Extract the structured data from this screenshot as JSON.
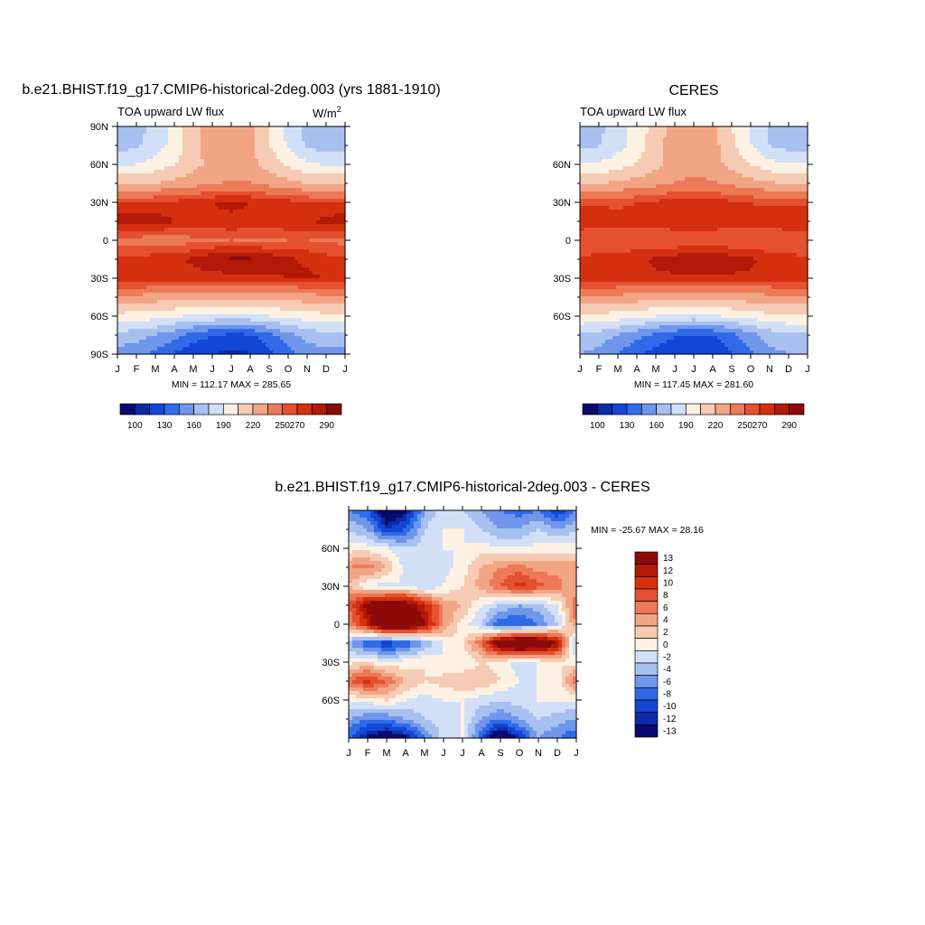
{
  "palettes": {
    "absolute": [
      "#0a0a70",
      "#0d2ba8",
      "#1446d6",
      "#2f6be8",
      "#6f96ea",
      "#a8c0ef",
      "#d2e0f7",
      "#fdf1e3",
      "#f6cbb3",
      "#f2a585",
      "#ec7a57",
      "#e45030",
      "#d4300f",
      "#b21906",
      "#8c0a0a"
    ],
    "difference": [
      "#0a0a70",
      "#0d2ba8",
      "#1446d6",
      "#2f6be8",
      "#6f96ea",
      "#a8c0ef",
      "#d2e0f7",
      "#fdf1e3",
      "#f6cbb3",
      "#f2a585",
      "#ec7a57",
      "#e45030",
      "#d4300f",
      "#b21906",
      "#8c0a0a"
    ]
  },
  "chart_data": [
    {
      "id": "model",
      "type": "heatmap",
      "title": "b.e21.BHIST.f19_g17.CMIP6-historical-2deg.003 (yrs 1881-1910)",
      "left_label": "TOA upward LW flux",
      "units": "W/m",
      "units_sup": "2",
      "stats": "MIN = 112.17 MAX = 285.65",
      "x_ticks": [
        "J",
        "F",
        "M",
        "A",
        "M",
        "J",
        "J",
        "A",
        "S",
        "O",
        "N",
        "D",
        "J"
      ],
      "y_ticks": [
        "90N",
        "60N",
        "30N",
        "0",
        "30S",
        "60S",
        "90S"
      ],
      "colorbar_labels": [
        "100",
        "130",
        "160",
        "190",
        "220",
        "250",
        "270",
        "290"
      ],
      "levels": [
        80,
        100,
        115,
        130,
        145,
        160,
        175,
        190,
        205,
        220,
        235,
        250,
        260,
        270,
        280,
        290
      ],
      "grid": {
        "lats": [
          90,
          75,
          60,
          45,
          30,
          15,
          0,
          -15,
          -30,
          -45,
          -60,
          -75,
          -90
        ],
        "months": [
          "J",
          "F",
          "M",
          "A",
          "M",
          "J",
          "J",
          "A",
          "S",
          "O",
          "N",
          "D",
          "J"
        ],
        "values": [
          [
            165,
            170,
            180,
            195,
            215,
            230,
            235,
            225,
            205,
            185,
            170,
            165,
            165
          ],
          [
            168,
            172,
            182,
            196,
            214,
            228,
            232,
            224,
            206,
            188,
            173,
            168,
            168
          ],
          [
            188,
            190,
            196,
            205,
            215,
            225,
            228,
            224,
            214,
            203,
            193,
            188,
            188
          ],
          [
            218,
            218,
            220,
            224,
            229,
            234,
            237,
            236,
            230,
            224,
            220,
            218,
            218
          ],
          [
            262,
            262,
            262,
            263,
            266,
            270,
            272,
            270,
            266,
            264,
            262,
            262,
            262
          ],
          [
            276,
            278,
            276,
            270,
            268,
            268,
            268,
            268,
            266,
            268,
            270,
            272,
            276
          ],
          [
            246,
            244,
            242,
            244,
            246,
            248,
            250,
            248,
            248,
            250,
            250,
            248,
            246
          ],
          [
            262,
            264,
            266,
            268,
            272,
            278,
            282,
            282,
            278,
            272,
            268,
            264,
            262
          ],
          [
            270,
            270,
            268,
            266,
            266,
            266,
            266,
            266,
            268,
            270,
            272,
            270,
            270
          ],
          [
            230,
            230,
            228,
            226,
            224,
            224,
            222,
            222,
            224,
            226,
            228,
            230,
            230
          ],
          [
            200,
            198,
            196,
            192,
            188,
            186,
            185,
            186,
            190,
            194,
            198,
            200,
            200
          ],
          [
            170,
            166,
            160,
            150,
            138,
            130,
            126,
            128,
            140,
            155,
            165,
            170,
            170
          ],
          [
            155,
            150,
            140,
            128,
            118,
            114,
            112,
            114,
            124,
            140,
            152,
            155,
            155
          ]
        ]
      }
    },
    {
      "id": "obs",
      "type": "heatmap",
      "title": "CERES",
      "left_label": "TOA upward LW flux",
      "stats": "MIN = 117.45 MAX = 281.60",
      "x_ticks": [
        "J",
        "F",
        "M",
        "A",
        "M",
        "J",
        "J",
        "A",
        "S",
        "O",
        "N",
        "D",
        "J"
      ],
      "y_ticks": [
        "60N",
        "30N",
        "0",
        "30S",
        "60S"
      ],
      "colorbar_labels": [
        "100",
        "130",
        "160",
        "190",
        "220",
        "250",
        "270",
        "290"
      ],
      "levels": [
        80,
        100,
        115,
        130,
        145,
        160,
        175,
        190,
        205,
        220,
        235,
        250,
        260,
        270,
        280,
        290
      ],
      "grid": {
        "lats": [
          90,
          75,
          60,
          45,
          30,
          15,
          0,
          -15,
          -30,
          -45,
          -60,
          -75,
          -90
        ],
        "months": [
          "J",
          "F",
          "M",
          "A",
          "M",
          "J",
          "J",
          "A",
          "S",
          "O",
          "N",
          "D",
          "J"
        ],
        "values": [
          [
            168,
            172,
            182,
            196,
            212,
            226,
            232,
            224,
            206,
            188,
            173,
            168,
            168
          ],
          [
            170,
            174,
            184,
            198,
            214,
            228,
            232,
            226,
            208,
            190,
            175,
            170,
            170
          ],
          [
            190,
            192,
            198,
            206,
            216,
            226,
            230,
            226,
            216,
            205,
            195,
            190,
            190
          ],
          [
            220,
            220,
            222,
            226,
            231,
            236,
            238,
            237,
            232,
            226,
            222,
            220,
            220
          ],
          [
            258,
            258,
            258,
            260,
            262,
            266,
            268,
            266,
            262,
            260,
            258,
            258,
            258
          ],
          [
            268,
            266,
            264,
            264,
            266,
            268,
            270,
            268,
            266,
            264,
            266,
            268,
            268
          ],
          [
            250,
            250,
            250,
            250,
            250,
            250,
            250,
            250,
            250,
            250,
            250,
            250,
            250
          ],
          [
            262,
            264,
            266,
            268,
            272,
            276,
            278,
            278,
            276,
            272,
            266,
            264,
            262
          ],
          [
            268,
            268,
            268,
            268,
            268,
            268,
            268,
            268,
            268,
            268,
            268,
            268,
            268
          ],
          [
            232,
            232,
            230,
            228,
            226,
            226,
            224,
            224,
            226,
            228,
            230,
            232,
            232
          ],
          [
            202,
            200,
            198,
            194,
            190,
            188,
            186,
            188,
            192,
            196,
            200,
            202,
            202
          ],
          [
            172,
            168,
            160,
            150,
            140,
            132,
            128,
            130,
            140,
            155,
            166,
            172,
            172
          ],
          [
            160,
            155,
            145,
            132,
            122,
            118,
            118,
            120,
            128,
            142,
            155,
            160,
            160
          ]
        ]
      }
    },
    {
      "id": "diff",
      "type": "heatmap",
      "title": "b.e21.BHIST.f19_g17.CMIP6-historical-2deg.003 - CERES",
      "stats": "MIN = -25.67 MAX =  28.16",
      "x_ticks": [
        "J",
        "F",
        "M",
        "A",
        "M",
        "J",
        "J",
        "A",
        "S",
        "O",
        "N",
        "D",
        "J"
      ],
      "y_ticks": [
        "60N",
        "30N",
        "0",
        "30S",
        "60S"
      ],
      "colorbar_labels": [
        "13",
        "12",
        "10",
        "8",
        "6",
        "4",
        "2",
        "0",
        "-2",
        "-4",
        "-6",
        "-8",
        "-10",
        "-12",
        "-13"
      ],
      "levels": [
        -30,
        -13,
        -12,
        -10,
        -8,
        -6,
        -4,
        -2,
        0,
        2,
        4,
        6,
        8,
        10,
        12,
        13,
        30
      ],
      "grid": {
        "lats": [
          90,
          75,
          60,
          45,
          30,
          15,
          0,
          -15,
          -30,
          -45,
          -60,
          -75,
          -90
        ],
        "months": [
          "J",
          "F",
          "M",
          "A",
          "M",
          "J",
          "J",
          "A",
          "S",
          "O",
          "N",
          "D",
          "J"
        ],
        "values": [
          [
            -8,
            -10,
            -16,
            -14,
            -6,
            -3,
            -4,
            -6,
            -8,
            -9,
            -8,
            -12,
            -8
          ],
          [
            -4,
            -6,
            -12,
            -10,
            -4,
            -2,
            -2,
            -4,
            -6,
            -6,
            -4,
            -6,
            -4
          ],
          [
            -1,
            -1,
            -2,
            -4,
            -3,
            -2,
            -2,
            -1,
            -2,
            -2,
            -1,
            -1,
            -1
          ],
          [
            4,
            5,
            2,
            -3,
            -4,
            -3,
            -1,
            2,
            4,
            5,
            3,
            3,
            4
          ],
          [
            2,
            -2,
            -3,
            -2,
            -4,
            -2,
            0,
            3,
            6,
            9,
            7,
            5,
            2
          ],
          [
            6,
            14,
            16,
            15,
            10,
            4,
            2,
            -2,
            -4,
            -6,
            -5,
            -2,
            6
          ],
          [
            4,
            10,
            20,
            18,
            12,
            4,
            -1,
            -4,
            -10,
            -10,
            -8,
            -4,
            4
          ],
          [
            -6,
            -10,
            -12,
            -10,
            -6,
            -2,
            0,
            6,
            16,
            20,
            18,
            12,
            -6
          ],
          [
            -1,
            0,
            -2,
            -1,
            0,
            -2,
            -2,
            0,
            -1,
            -3,
            -2,
            0,
            -1
          ],
          [
            6,
            9,
            6,
            2,
            0,
            1,
            2,
            2,
            0,
            -2,
            -2,
            -1,
            6
          ],
          [
            -2,
            -1,
            0,
            -2,
            -3,
            -2,
            -2,
            -3,
            -4,
            -3,
            -2,
            -2,
            -2
          ],
          [
            -6,
            -8,
            -8,
            -6,
            -4,
            -3,
            -2,
            -6,
            -8,
            -6,
            -4,
            -5,
            -6
          ],
          [
            -10,
            -14,
            -16,
            -14,
            -8,
            -3,
            -2,
            -10,
            -18,
            -12,
            -6,
            -8,
            -10
          ]
        ]
      }
    }
  ]
}
